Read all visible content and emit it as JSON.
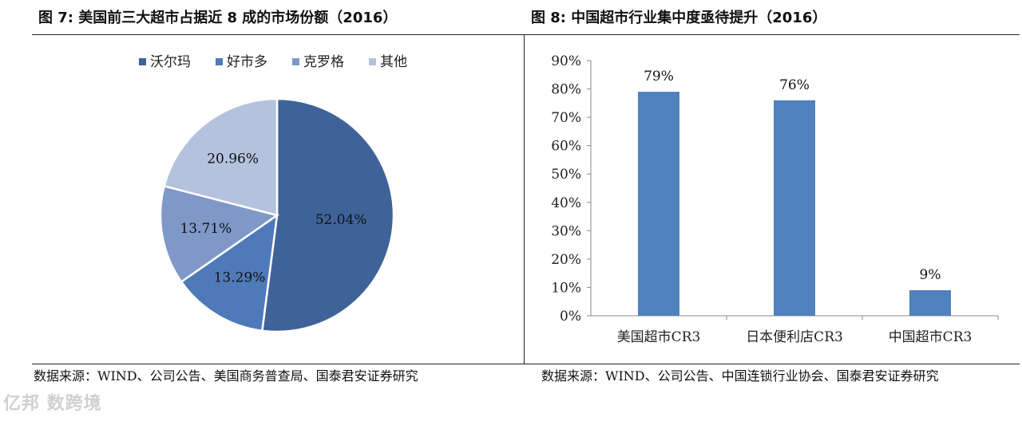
{
  "left": {
    "title": "图 7:  美国前三大超市占据近 8 成的市场份额（2016）",
    "source": "数据来源：WIND、公司公告、美国商务普查局、国泰君安证券研究"
  },
  "right": {
    "title": "图 8:  中国超市行业集中度亟待提升（2016）",
    "source": "数据来源：WIND、公司公告、中国连锁行业协会、国泰君安证券研究"
  },
  "watermark": "亿邦 数跨境",
  "chart_data": [
    {
      "type": "pie",
      "title": "",
      "legend_position": "top",
      "categories": [
        "沃尔玛",
        "好市多",
        "克罗格",
        "其他"
      ],
      "values": [
        52.04,
        13.29,
        13.71,
        20.96
      ],
      "labels": [
        "52.04%",
        "13.29%",
        "13.71%",
        "20.96%"
      ],
      "colors": [
        "#3f6399",
        "#4f7ab9",
        "#7f98c8",
        "#b4c2de"
      ]
    },
    {
      "type": "bar",
      "title": "",
      "categories": [
        "美国超市CR3",
        "日本便利店CR3",
        "中国超市CR3"
      ],
      "values": [
        79,
        76,
        9
      ],
      "labels": [
        "79%",
        "76%",
        "9%"
      ],
      "ylim": [
        0,
        90
      ],
      "yticks": [
        "0%",
        "10%",
        "20%",
        "30%",
        "40%",
        "50%",
        "60%",
        "70%",
        "80%",
        "90%"
      ],
      "grid": false,
      "color": "#4f81bd"
    }
  ]
}
